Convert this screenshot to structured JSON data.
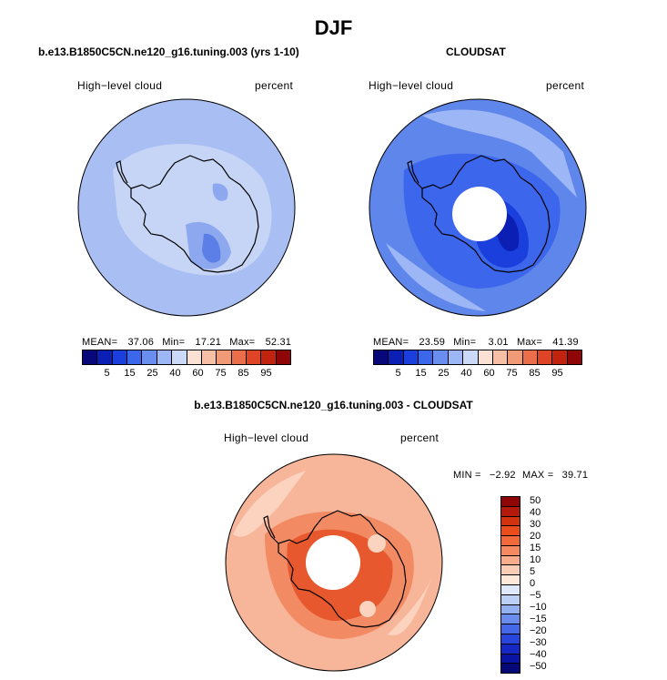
{
  "figure": {
    "title": "DJF"
  },
  "panel_left": {
    "title": "b.e13.B1850C5CN.ne120_g16.tuning.003 (yrs 1-10)",
    "variable": "High−level cloud",
    "units": "percent",
    "stats": {
      "mean_label": "MEAN=",
      "mean": "37.06",
      "min_label": "Min=",
      "min": "17.21",
      "max_label": "Max=",
      "max": "52.31"
    }
  },
  "panel_right": {
    "title": "CLOUDSAT",
    "variable": "High−level cloud",
    "units": "percent",
    "stats": {
      "mean_label": "MEAN=",
      "mean": "23.59",
      "min_label": "Min=",
      "min": "3.01",
      "max_label": "Max=",
      "max": "41.39"
    }
  },
  "panel_diff": {
    "title": "b.e13.B1850C5CN.ne120_g16.tuning.003 - CLOUDSAT",
    "variable": "High−level cloud",
    "units": "percent",
    "stats": {
      "min_label": "MIN =",
      "min": "−2.92",
      "max_label": "MAX =",
      "max": "39.71"
    }
  },
  "colorbar_abs": {
    "colors": [
      "#08087a",
      "#0c1fb5",
      "#1a3fdc",
      "#3c66ec",
      "#6a8ef0",
      "#9db6f5",
      "#cbd8f8",
      "#fbe1d3",
      "#f6bfa6",
      "#f19a78",
      "#ea6e4a",
      "#de4425",
      "#c2230f",
      "#8e0606"
    ],
    "ticks": [
      "5",
      "15",
      "25",
      "40",
      "60",
      "75",
      "85",
      "95"
    ]
  },
  "colorbar_diff": {
    "colors": [
      "#8e0606",
      "#b31a0c",
      "#d3320f",
      "#ea4c1c",
      "#f26a3c",
      "#f58a62",
      "#f8ac8c",
      "#fbcdb5",
      "#fde8da",
      "#e0e8fb",
      "#bcd0f6",
      "#93b0f1",
      "#6a8ded",
      "#4468e8",
      "#2846dc",
      "#1628c4",
      "#0a14a4",
      "#060878"
    ],
    "ticks": [
      "50",
      "40",
      "30",
      "20",
      "15",
      "10",
      "5",
      "0",
      "−5",
      "−10",
      "−15",
      "−20",
      "−30",
      "−40",
      "−50"
    ]
  },
  "map_colors": {
    "left_base": "#a9bff3",
    "left_light": "#c6d5f6",
    "left_mid": "#8ea8ef",
    "left_dark": "#5b7fe6",
    "right_base": "#5f86ea",
    "right_light": "#9db6f5",
    "right_mid": "#3c66ec",
    "right_dark": "#1a3fdc",
    "right_darkest": "#0c1fb5",
    "diff_base": "#f7b59a",
    "diff_light": "#fbd3bf",
    "diff_mid": "#f28b64",
    "diff_dark": "#e8582e",
    "coast": "#000000",
    "pole_hole": "#ffffff"
  }
}
